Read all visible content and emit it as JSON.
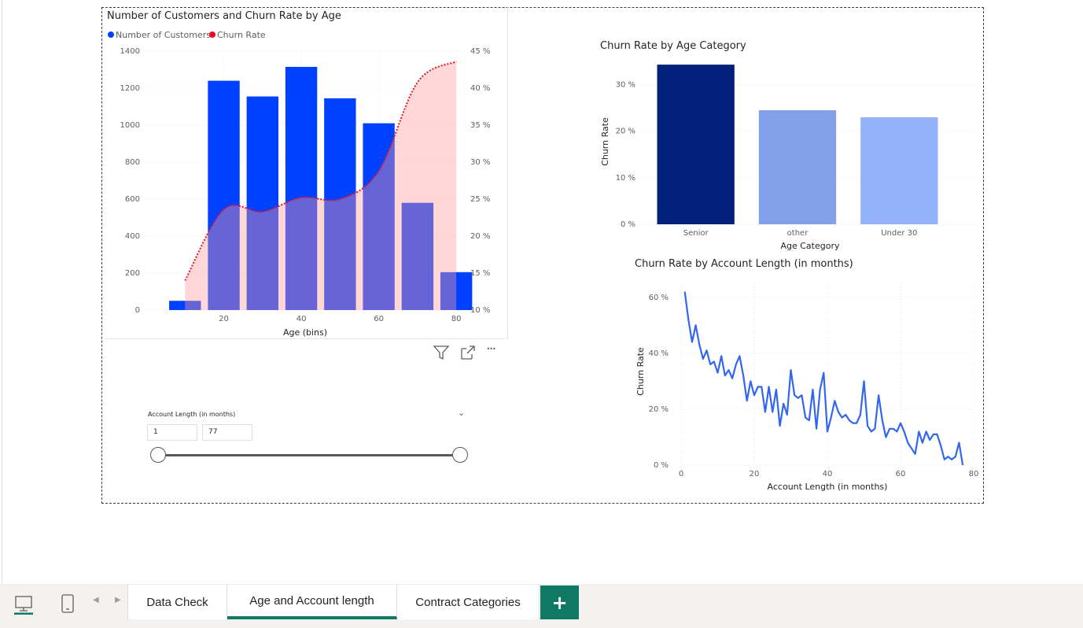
{
  "chart_data": [
    {
      "type": "bar",
      "title": "Number of Customers and Churn Rate by Age",
      "legend": [
        "Number of Customers",
        "Churn Rate"
      ],
      "legend_placement": "top-left",
      "xlabel": "Age (bins)",
      "ylim": [
        0,
        1400
      ],
      "y2lim": [
        10,
        45
      ],
      "x_ticks": [
        "20",
        "40",
        "60",
        "80"
      ],
      "y_ticks": [
        "1400",
        "1200",
        "1000",
        "800",
        "600",
        "400",
        "200",
        "0"
      ],
      "y2_ticks": [
        "45 %",
        "40 %",
        "35 %",
        "30 %",
        "25 %",
        "20 %",
        "15 %",
        "10 %"
      ],
      "series": [
        {
          "name": "Number of Customers",
          "type": "bar",
          "color": "#0040ff",
          "x": [
            10,
            20,
            30,
            40,
            50,
            60,
            70,
            80
          ],
          "values": [
            50,
            1240,
            1155,
            1315,
            1145,
            1010,
            580,
            205
          ]
        },
        {
          "name": "Churn Rate",
          "type": "area",
          "color": "#e81123",
          "fill": "#ff9a9a",
          "x": [
            10,
            20,
            30,
            40,
            50,
            60,
            70,
            80
          ],
          "values": [
            14.0,
            23.6,
            23.3,
            25.2,
            25.0,
            28.8,
            40.8,
            43.6
          ]
        }
      ]
    },
    {
      "type": "bar",
      "title": "Churn Rate by Age Category",
      "xlabel": "Age Category",
      "ylabel": "Churn Rate",
      "ylim": [
        0,
        35
      ],
      "y_ticks": [
        "30 %",
        "20 %",
        "10 %",
        "0 %"
      ],
      "categories": [
        "Senior",
        "other",
        "Under 30"
      ],
      "values": [
        34.3,
        24.5,
        23.0
      ],
      "colors": [
        "#00207a",
        "#82a0ea",
        "#96b1fb"
      ]
    },
    {
      "type": "line",
      "title": "Churn Rate by Account Length (in months)",
      "xlabel": "Account Length (in months)",
      "ylabel": "Churn Rate",
      "xlim": [
        0,
        80
      ],
      "ylim": [
        0,
        65
      ],
      "x_ticks": [
        "0",
        "20",
        "40",
        "60",
        "80"
      ],
      "y_ticks": [
        "60 %",
        "40 %",
        "20 %",
        "0 %"
      ],
      "color": "#3366ee",
      "x": [
        1,
        2,
        3,
        4,
        5,
        6,
        7,
        8,
        9,
        10,
        11,
        12,
        13,
        14,
        15,
        16,
        17,
        18,
        19,
        20,
        21,
        22,
        23,
        24,
        25,
        26,
        27,
        28,
        29,
        30,
        31,
        32,
        33,
        34,
        35,
        36,
        37,
        38,
        39,
        40,
        41,
        42,
        43,
        44,
        45,
        46,
        47,
        48,
        49,
        50,
        51,
        52,
        53,
        54,
        55,
        56,
        57,
        58,
        59,
        60,
        61,
        62,
        63,
        64,
        65,
        66,
        67,
        68,
        69,
        70,
        71,
        72,
        73,
        74,
        75,
        76,
        77
      ],
      "values": [
        62,
        52,
        44,
        50,
        43,
        38,
        41,
        36,
        37,
        33,
        39,
        32,
        34,
        31,
        36,
        39,
        32,
        23,
        30,
        25,
        28,
        28,
        19,
        28,
        19,
        27,
        14,
        22,
        18,
        34,
        25,
        24,
        25,
        17,
        16,
        27,
        13,
        27,
        33,
        12,
        17,
        23,
        19,
        17,
        18,
        16,
        15,
        15,
        18,
        30,
        14,
        12,
        13,
        25,
        16,
        10,
        13,
        13,
        12,
        15,
        12,
        8,
        6,
        4,
        12,
        8,
        12,
        9,
        11,
        11,
        7,
        2,
        3,
        2,
        3,
        8,
        0
      ]
    }
  ],
  "toolbar": {
    "filter_icon": "filter-icon",
    "focus_icon": "focus-mode-icon",
    "more_icon": "more-options-icon",
    "more_glyph": "···"
  },
  "slicer": {
    "title": "Account Length (in months)",
    "min_value": "1",
    "max_value": "77",
    "chevron_icon": "chevron-down-icon",
    "chevron_glyph": "⌄"
  },
  "bottom_bar": {
    "desktop_view_icon": "desktop-icon",
    "mobile_view_icon": "mobile-icon",
    "prev_glyph": "◀",
    "next_glyph": "▶",
    "tabs": [
      {
        "label": "Data Check"
      },
      {
        "label": "Age and Account length"
      },
      {
        "label": "Contract Categories"
      }
    ],
    "active_tab": "Age and Account length",
    "add_glyph": "+",
    "accent_color": "#117865"
  }
}
